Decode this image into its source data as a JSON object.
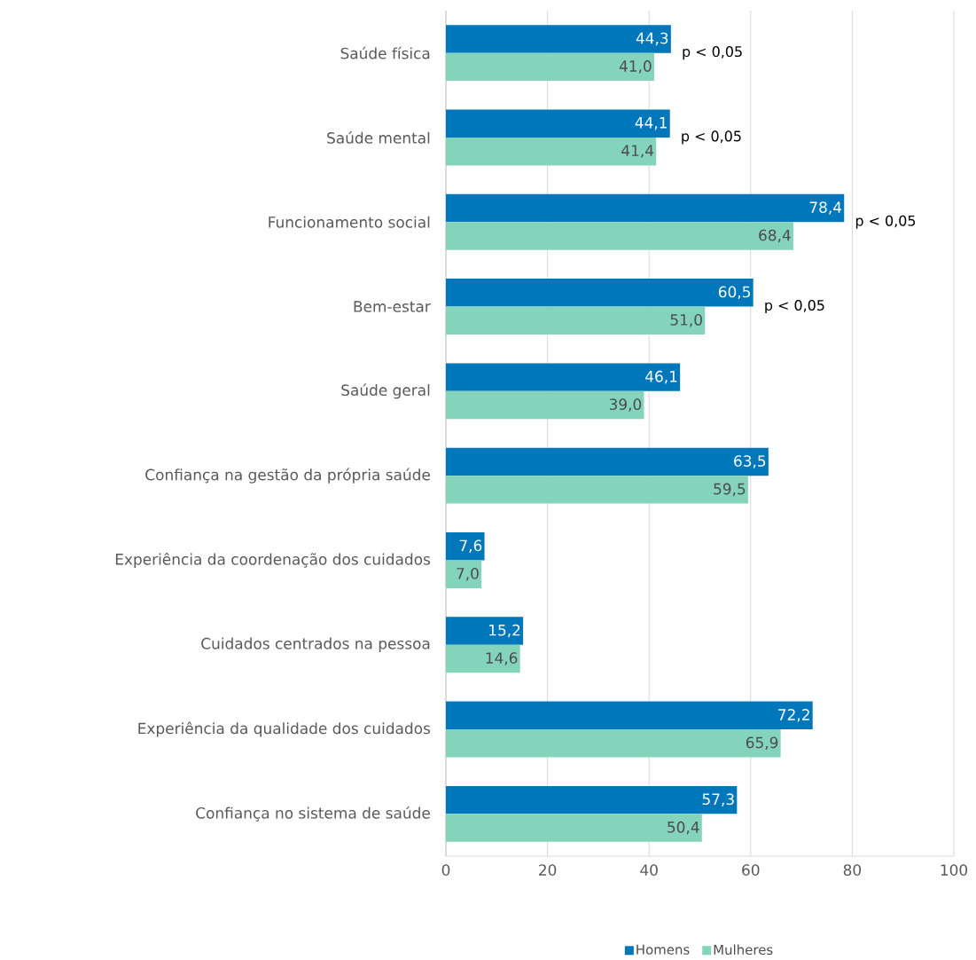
{
  "chart_data": {
    "type": "bar",
    "orientation": "horizontal",
    "categories": [
      "Saúde física",
      "Saúde mental",
      "Funcionamento social",
      "Bem-estar",
      "Saúde geral",
      "Confiança na gestão da própria saúde",
      "Experiência da coordenação dos cuidados",
      "Cuidados centrados na pessoa",
      "Experiência da qualidade dos cuidados",
      "Confiança no sistema de saúde"
    ],
    "series": [
      {
        "name": "Homens",
        "color": "#0077bb",
        "values": [
          44.3,
          44.1,
          78.4,
          60.5,
          46.1,
          63.5,
          7.6,
          15.2,
          72.2,
          57.3
        ],
        "value_labels": [
          "44,3",
          "44,1",
          "78,4",
          "60,5",
          "46,1",
          "63,5",
          "7,6",
          "15,2",
          "72,2",
          "57,3"
        ]
      },
      {
        "name": "Mulheres",
        "color": "#84d4bb",
        "values": [
          41.0,
          41.4,
          68.4,
          51.0,
          39.0,
          59.5,
          7.0,
          14.6,
          65.9,
          50.4
        ],
        "value_labels": [
          "41,0",
          "41,4",
          "68,4",
          "51,0",
          "39,0",
          "59,5",
          "7,0",
          "14,6",
          "65,9",
          "50,4"
        ]
      }
    ],
    "xlim": [
      0,
      100
    ],
    "xticks": [
      0,
      20,
      40,
      60,
      80,
      100
    ],
    "grid": "x",
    "legend": "bottom",
    "annotations": [
      {
        "text": "p < 0,05",
        "x": 44.3,
        "y": "Saúde física"
      },
      {
        "text": "p < 0,05",
        "x": 44.1,
        "y": "Saúde mental"
      },
      {
        "text": "p < 0,05",
        "x": 78.4,
        "y": "Funcionamento social"
      },
      {
        "text": "p < 0,05",
        "x": 60.5,
        "y": "Bem-estar"
      }
    ]
  }
}
